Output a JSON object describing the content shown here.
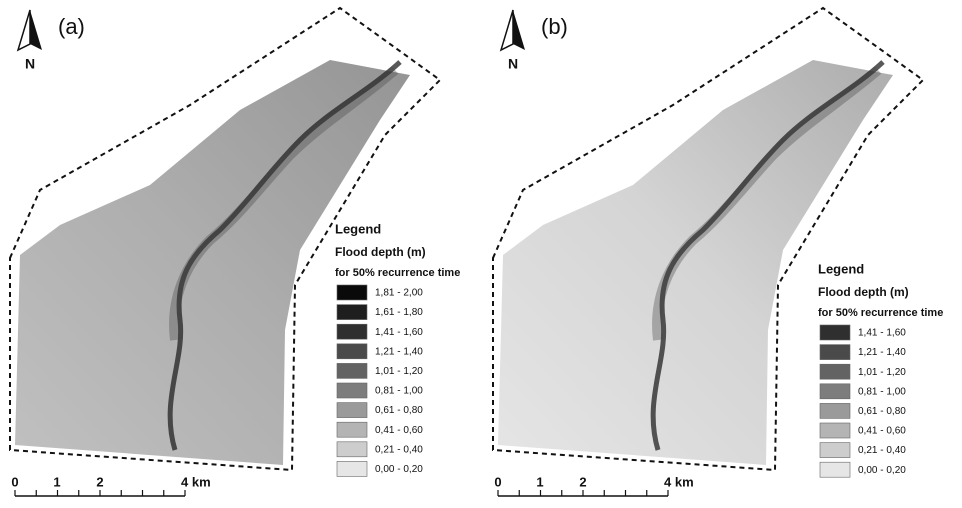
{
  "panels": [
    {
      "label": "(a)",
      "north": "N",
      "legend": {
        "title": "Legend",
        "subtitle": "Flood depth (m)",
        "note": "for 50% recurrence time",
        "entries": [
          {
            "label": "1,81 - 2,00",
            "color": "#0a0a0a"
          },
          {
            "label": "1,61 - 1,80",
            "color": "#1e1e1e"
          },
          {
            "label": "1,41 - 1,60",
            "color": "#2f2f2f"
          },
          {
            "label": "1,21 - 1,40",
            "color": "#4a4a4a"
          },
          {
            "label": "1,01 - 1,20",
            "color": "#636363"
          },
          {
            "label": "0,81 - 1,00",
            "color": "#7d7d7d"
          },
          {
            "label": "0,61 - 0,80",
            "color": "#9a9a9a"
          },
          {
            "label": "0,41 - 0,60",
            "color": "#b4b4b4"
          },
          {
            "label": "0,21 - 0,40",
            "color": "#cdcdcd"
          },
          {
            "label": "0,00 - 0,20",
            "color": "#e6e6e6"
          }
        ]
      },
      "scale": [
        "0",
        "1",
        "2",
        "4 km"
      ]
    },
    {
      "label": "(b)",
      "north": "N",
      "legend": {
        "title": "Legend",
        "subtitle": "Flood depth (m)",
        "note": "for 50% recurrence time",
        "entries": [
          {
            "label": "1,41 - 1,60",
            "color": "#2f2f2f"
          },
          {
            "label": "1,21 - 1,40",
            "color": "#4a4a4a"
          },
          {
            "label": "1,01 - 1,20",
            "color": "#636363"
          },
          {
            "label": "0,81 - 1,00",
            "color": "#7d7d7d"
          },
          {
            "label": "0,61 - 0,80",
            "color": "#9a9a9a"
          },
          {
            "label": "0,41 - 0,60",
            "color": "#b4b4b4"
          },
          {
            "label": "0,21 - 0,40",
            "color": "#cdcdcd"
          },
          {
            "label": "0,00 - 0,20",
            "color": "#e6e6e6"
          }
        ]
      },
      "scale": [
        "0",
        "1",
        "2",
        "4 km"
      ]
    }
  ]
}
